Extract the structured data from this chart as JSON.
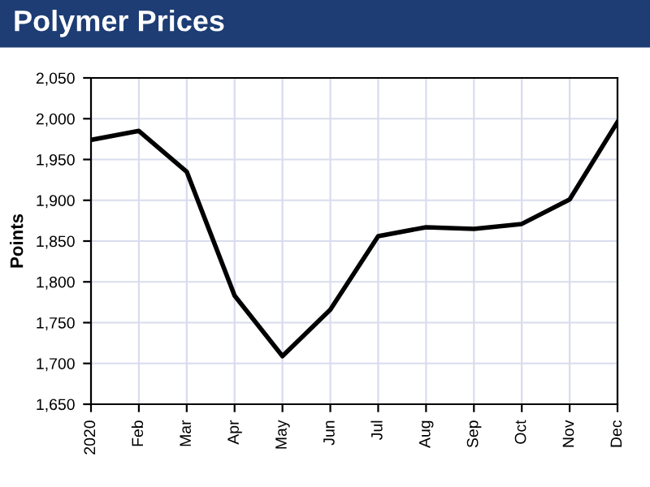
{
  "chart_data": {
    "type": "line",
    "title": "Polymer Prices",
    "ylabel": "Points",
    "categories": [
      "2020",
      "Feb",
      "Mar",
      "Apr",
      "May",
      "Jun",
      "Jul",
      "Aug",
      "Sep",
      "Oct",
      "Nov",
      "Dec"
    ],
    "series": [
      {
        "color": "#000000",
        "values": [
          1974,
          1985,
          1935,
          1783,
          1709,
          1766,
          1856,
          1867,
          1865,
          1871,
          1901,
          1996
        ]
      }
    ],
    "ylim": [
      1650,
      2050
    ],
    "yticks": [
      {
        "value": 1650,
        "label": "1,650"
      },
      {
        "value": 1700,
        "label": "1,700"
      },
      {
        "value": 1750,
        "label": "1,750"
      },
      {
        "value": 1800,
        "label": "1,800"
      },
      {
        "value": 1850,
        "label": "1,850"
      },
      {
        "value": 1900,
        "label": "1,900"
      },
      {
        "value": 1950,
        "label": "1,950"
      },
      {
        "value": 2000,
        "label": "2,000"
      },
      {
        "value": 2050,
        "label": "2,050"
      }
    ],
    "grid": true,
    "line_style": "solid"
  }
}
